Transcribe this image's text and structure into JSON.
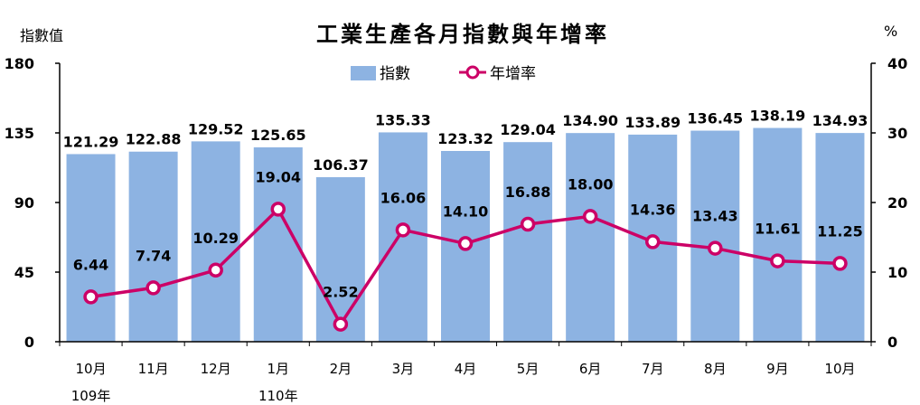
{
  "chart_data": {
    "type": "bar+line",
    "title": "工業生產各月指數與年增率",
    "left_unit": "指數值",
    "right_unit": "%",
    "categories": [
      "10月",
      "11月",
      "12月",
      "1月",
      "2月",
      "3月",
      "4月",
      "5月",
      "6月",
      "7月",
      "8月",
      "9月",
      "10月"
    ],
    "year_labels": [
      {
        "index": 0,
        "text": "109年"
      },
      {
        "index": 3,
        "text": "110年"
      }
    ],
    "left_axis": {
      "min": 0,
      "max": 180,
      "ticks": [
        "0",
        "45",
        "90",
        "135",
        "180"
      ]
    },
    "right_axis": {
      "min": 0,
      "max": 40,
      "ticks": [
        "0",
        "10",
        "20",
        "30",
        "40"
      ]
    },
    "series": [
      {
        "name": "指數",
        "type": "bar",
        "axis": "left",
        "color": "#8db3e2",
        "values": [
          121.29,
          122.88,
          129.52,
          125.65,
          106.37,
          135.33,
          123.32,
          129.04,
          134.9,
          133.89,
          136.45,
          138.19,
          134.93
        ],
        "labels": [
          "121.29",
          "122.88",
          "129.52",
          "125.65",
          "106.37",
          "135.33",
          "123.32",
          "129.04",
          "134.90",
          "133.89",
          "136.45",
          "138.19",
          "134.93"
        ]
      },
      {
        "name": "年增率",
        "type": "line",
        "axis": "right",
        "color": "#cc0066",
        "values": [
          6.44,
          7.74,
          10.29,
          19.04,
          2.52,
          16.06,
          14.1,
          16.88,
          18.0,
          14.36,
          13.43,
          11.61,
          11.25
        ],
        "labels": [
          "6.44",
          "7.74",
          "10.29",
          "19.04",
          "2.52",
          "16.06",
          "14.10",
          "16.88",
          "18.00",
          "14.36",
          "13.43",
          "11.61",
          "11.25"
        ]
      }
    ],
    "legend_position": "top-center",
    "grid": false
  }
}
